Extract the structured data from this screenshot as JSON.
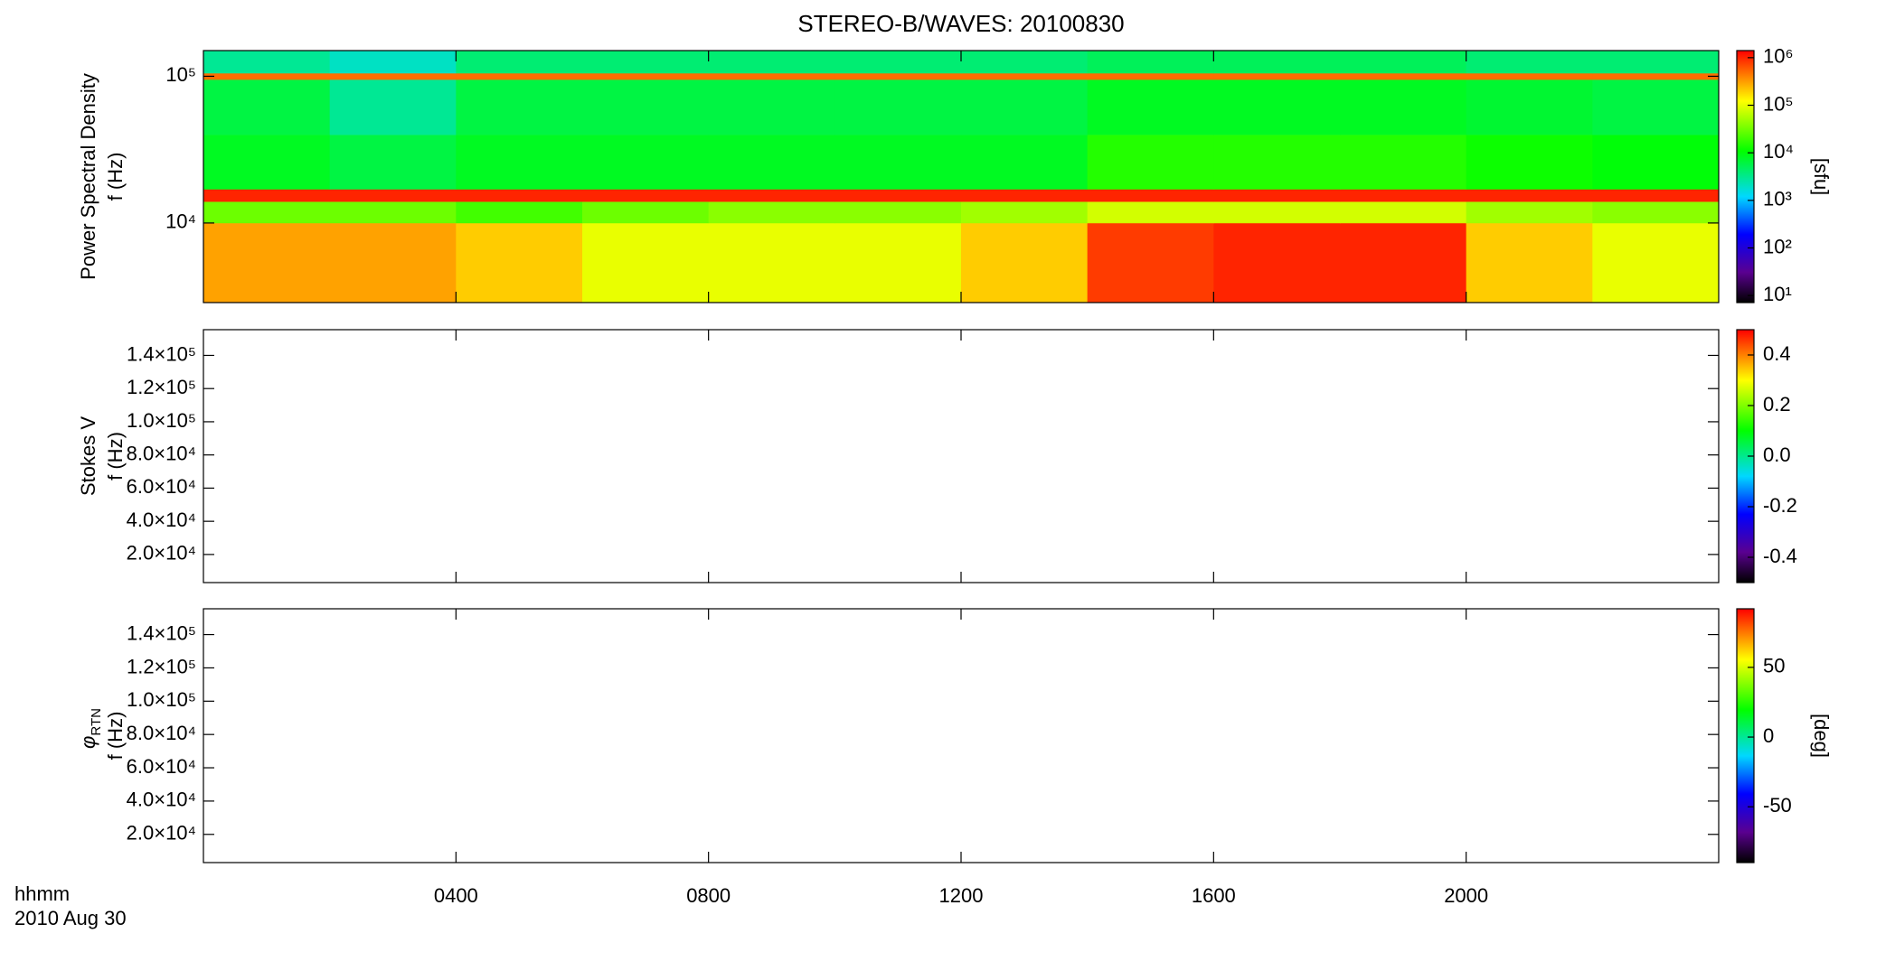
{
  "chart_data": {
    "title": "STEREO-B/WAVES: 20100830",
    "xlim": [
      0,
      24
    ],
    "xticks": [
      {
        "value": 4,
        "label": "0400"
      },
      {
        "value": 8,
        "label": "0800"
      },
      {
        "value": 12,
        "label": "1200"
      },
      {
        "value": 16,
        "label": "1600"
      },
      {
        "value": 20,
        "label": "2000"
      }
    ],
    "xlabel": "hhmm",
    "date_label": "2010 Aug 30",
    "colormap": "rainbow",
    "panels": [
      {
        "type": "heatmap",
        "ylabel": "Power Spectral Density",
        "ylabel2": "f (Hz)",
        "ylog": true,
        "ylim": [
          2870,
          149600
        ],
        "yticks": [
          {
            "value": 10000,
            "label": "10⁴"
          },
          {
            "value": 100000,
            "label": "10⁵"
          }
        ],
        "x_edges": [
          0,
          2,
          4,
          6,
          8,
          10,
          12,
          14,
          16,
          18,
          20,
          22,
          24
        ],
        "y_edges": [
          2870,
          10000,
          14000,
          17000,
          40000,
          95000,
          105000,
          149600
        ],
        "z": [
          [
            300000,
            300000,
            200000,
            100000,
            100000,
            100000,
            200000,
            800000,
            1000000,
            1000000,
            200000,
            100000
          ],
          [
            30000,
            30000,
            20000,
            30000,
            40000,
            40000,
            50000,
            80000,
            80000,
            80000,
            50000,
            40000
          ],
          [
            1000000,
            1000000,
            1000000,
            1000000,
            1000000,
            1000000,
            1000000,
            1000000,
            1000000,
            1000000,
            1000000,
            1000000
          ],
          [
            8000,
            6000,
            8000,
            8000,
            8000,
            8000,
            8000,
            15000,
            15000,
            15000,
            12000,
            10000
          ],
          [
            6000,
            3000,
            6000,
            6000,
            6000,
            6000,
            6000,
            8000,
            8000,
            8000,
            7000,
            6000
          ],
          [
            500000,
            500000,
            500000,
            500000,
            500000,
            500000,
            500000,
            500000,
            500000,
            500000,
            500000,
            500000
          ],
          [
            3000,
            2000,
            4000,
            4000,
            4000,
            4000,
            4000,
            5000,
            5000,
            5000,
            4000,
            4000
          ]
        ],
        "colorbar": {
          "log": true,
          "lim": [
            7.1,
            1410000
          ],
          "label": "[sfu]",
          "ticks": [
            {
              "value": 10,
              "label": "10¹"
            },
            {
              "value": 100,
              "label": "10²"
            },
            {
              "value": 1000,
              "label": "10³"
            },
            {
              "value": 10000,
              "label": "10⁴"
            },
            {
              "value": 100000,
              "label": "10⁵"
            },
            {
              "value": 1000000,
              "label": "10⁶"
            }
          ]
        }
      },
      {
        "type": "heatmap",
        "ylabel": "Stokes V",
        "ylabel2": "f (Hz)",
        "ylog": false,
        "ylim": [
          3060,
          155500
        ],
        "yticks": [
          {
            "value": 20000,
            "label": "2.0×10⁴"
          },
          {
            "value": 40000,
            "label": "4.0×10⁴"
          },
          {
            "value": 60000,
            "label": "6.0×10⁴"
          },
          {
            "value": 80000,
            "label": "8.0×10⁴"
          },
          {
            "value": 100000,
            "label": "1.0×10⁵"
          },
          {
            "value": 120000,
            "label": "1.2×10⁵"
          },
          {
            "value": 140000,
            "label": "1.4×10⁵"
          }
        ],
        "colorbar": {
          "log": false,
          "lim": [
            -0.5,
            0.5
          ],
          "ticks": [
            -0.4,
            -0.2,
            {
              "value": 0,
              "label": "0.0"
            },
            0.2,
            0.4
          ]
        }
      },
      {
        "type": "heatmap",
        "ylabel_symbol": "φ",
        "ylabel_subscript": "RTN",
        "ylabel2": "f (Hz)",
        "ylog": false,
        "ylim": [
          3060,
          155500
        ],
        "yticks": [
          {
            "value": 20000,
            "label": "2.0×10⁴"
          },
          {
            "value": 40000,
            "label": "4.0×10⁴"
          },
          {
            "value": 60000,
            "label": "6.0×10⁴"
          },
          {
            "value": 80000,
            "label": "8.0×10⁴"
          },
          {
            "value": 100000,
            "label": "1.0×10⁵"
          },
          {
            "value": 120000,
            "label": "1.2×10⁵"
          },
          {
            "value": 140000,
            "label": "1.4×10⁵"
          }
        ],
        "colorbar": {
          "log": false,
          "lim": [
            -90,
            92
          ],
          "label": "[deg]",
          "ticks": [
            -50,
            0,
            50
          ]
        }
      }
    ]
  }
}
